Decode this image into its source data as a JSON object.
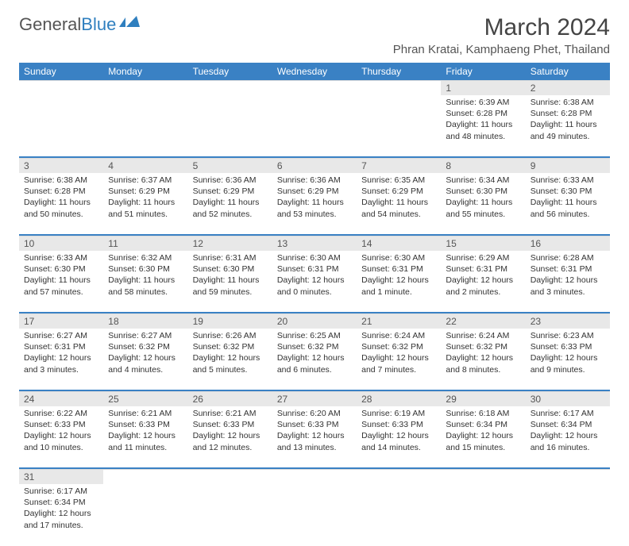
{
  "brand": {
    "part1": "General",
    "part2": "Blue"
  },
  "title": "March 2024",
  "location": "Phran Kratai, Kamphaeng Phet, Thailand",
  "colors": {
    "header_bg": "#3a81c4",
    "header_text": "#ffffff",
    "daynum_bg": "#e8e8e8",
    "row_divider": "#3a81c4",
    "text": "#333333",
    "brand_blue": "#2f7fbf",
    "brand_gray": "#555555"
  },
  "typography": {
    "title_fontsize": 30,
    "location_fontsize": 15,
    "weekday_fontsize": 12,
    "body_fontsize": 10.5
  },
  "weekdays": [
    "Sunday",
    "Monday",
    "Tuesday",
    "Wednesday",
    "Thursday",
    "Friday",
    "Saturday"
  ],
  "weeks": [
    [
      null,
      null,
      null,
      null,
      null,
      {
        "n": "1",
        "sr": "6:39 AM",
        "ss": "6:28 PM",
        "dl": "11 hours and 48 minutes."
      },
      {
        "n": "2",
        "sr": "6:38 AM",
        "ss": "6:28 PM",
        "dl": "11 hours and 49 minutes."
      }
    ],
    [
      {
        "n": "3",
        "sr": "6:38 AM",
        "ss": "6:28 PM",
        "dl": "11 hours and 50 minutes."
      },
      {
        "n": "4",
        "sr": "6:37 AM",
        "ss": "6:29 PM",
        "dl": "11 hours and 51 minutes."
      },
      {
        "n": "5",
        "sr": "6:36 AM",
        "ss": "6:29 PM",
        "dl": "11 hours and 52 minutes."
      },
      {
        "n": "6",
        "sr": "6:36 AM",
        "ss": "6:29 PM",
        "dl": "11 hours and 53 minutes."
      },
      {
        "n": "7",
        "sr": "6:35 AM",
        "ss": "6:29 PM",
        "dl": "11 hours and 54 minutes."
      },
      {
        "n": "8",
        "sr": "6:34 AM",
        "ss": "6:30 PM",
        "dl": "11 hours and 55 minutes."
      },
      {
        "n": "9",
        "sr": "6:33 AM",
        "ss": "6:30 PM",
        "dl": "11 hours and 56 minutes."
      }
    ],
    [
      {
        "n": "10",
        "sr": "6:33 AM",
        "ss": "6:30 PM",
        "dl": "11 hours and 57 minutes."
      },
      {
        "n": "11",
        "sr": "6:32 AM",
        "ss": "6:30 PM",
        "dl": "11 hours and 58 minutes."
      },
      {
        "n": "12",
        "sr": "6:31 AM",
        "ss": "6:30 PM",
        "dl": "11 hours and 59 minutes."
      },
      {
        "n": "13",
        "sr": "6:30 AM",
        "ss": "6:31 PM",
        "dl": "12 hours and 0 minutes."
      },
      {
        "n": "14",
        "sr": "6:30 AM",
        "ss": "6:31 PM",
        "dl": "12 hours and 1 minute."
      },
      {
        "n": "15",
        "sr": "6:29 AM",
        "ss": "6:31 PM",
        "dl": "12 hours and 2 minutes."
      },
      {
        "n": "16",
        "sr": "6:28 AM",
        "ss": "6:31 PM",
        "dl": "12 hours and 3 minutes."
      }
    ],
    [
      {
        "n": "17",
        "sr": "6:27 AM",
        "ss": "6:31 PM",
        "dl": "12 hours and 3 minutes."
      },
      {
        "n": "18",
        "sr": "6:27 AM",
        "ss": "6:32 PM",
        "dl": "12 hours and 4 minutes."
      },
      {
        "n": "19",
        "sr": "6:26 AM",
        "ss": "6:32 PM",
        "dl": "12 hours and 5 minutes."
      },
      {
        "n": "20",
        "sr": "6:25 AM",
        "ss": "6:32 PM",
        "dl": "12 hours and 6 minutes."
      },
      {
        "n": "21",
        "sr": "6:24 AM",
        "ss": "6:32 PM",
        "dl": "12 hours and 7 minutes."
      },
      {
        "n": "22",
        "sr": "6:24 AM",
        "ss": "6:32 PM",
        "dl": "12 hours and 8 minutes."
      },
      {
        "n": "23",
        "sr": "6:23 AM",
        "ss": "6:33 PM",
        "dl": "12 hours and 9 minutes."
      }
    ],
    [
      {
        "n": "24",
        "sr": "6:22 AM",
        "ss": "6:33 PM",
        "dl": "12 hours and 10 minutes."
      },
      {
        "n": "25",
        "sr": "6:21 AM",
        "ss": "6:33 PM",
        "dl": "12 hours and 11 minutes."
      },
      {
        "n": "26",
        "sr": "6:21 AM",
        "ss": "6:33 PM",
        "dl": "12 hours and 12 minutes."
      },
      {
        "n": "27",
        "sr": "6:20 AM",
        "ss": "6:33 PM",
        "dl": "12 hours and 13 minutes."
      },
      {
        "n": "28",
        "sr": "6:19 AM",
        "ss": "6:33 PM",
        "dl": "12 hours and 14 minutes."
      },
      {
        "n": "29",
        "sr": "6:18 AM",
        "ss": "6:34 PM",
        "dl": "12 hours and 15 minutes."
      },
      {
        "n": "30",
        "sr": "6:17 AM",
        "ss": "6:34 PM",
        "dl": "12 hours and 16 minutes."
      }
    ],
    [
      {
        "n": "31",
        "sr": "6:17 AM",
        "ss": "6:34 PM",
        "dl": "12 hours and 17 minutes."
      },
      null,
      null,
      null,
      null,
      null,
      null
    ]
  ],
  "labels": {
    "sunrise": "Sunrise:",
    "sunset": "Sunset:",
    "daylight": "Daylight:"
  }
}
